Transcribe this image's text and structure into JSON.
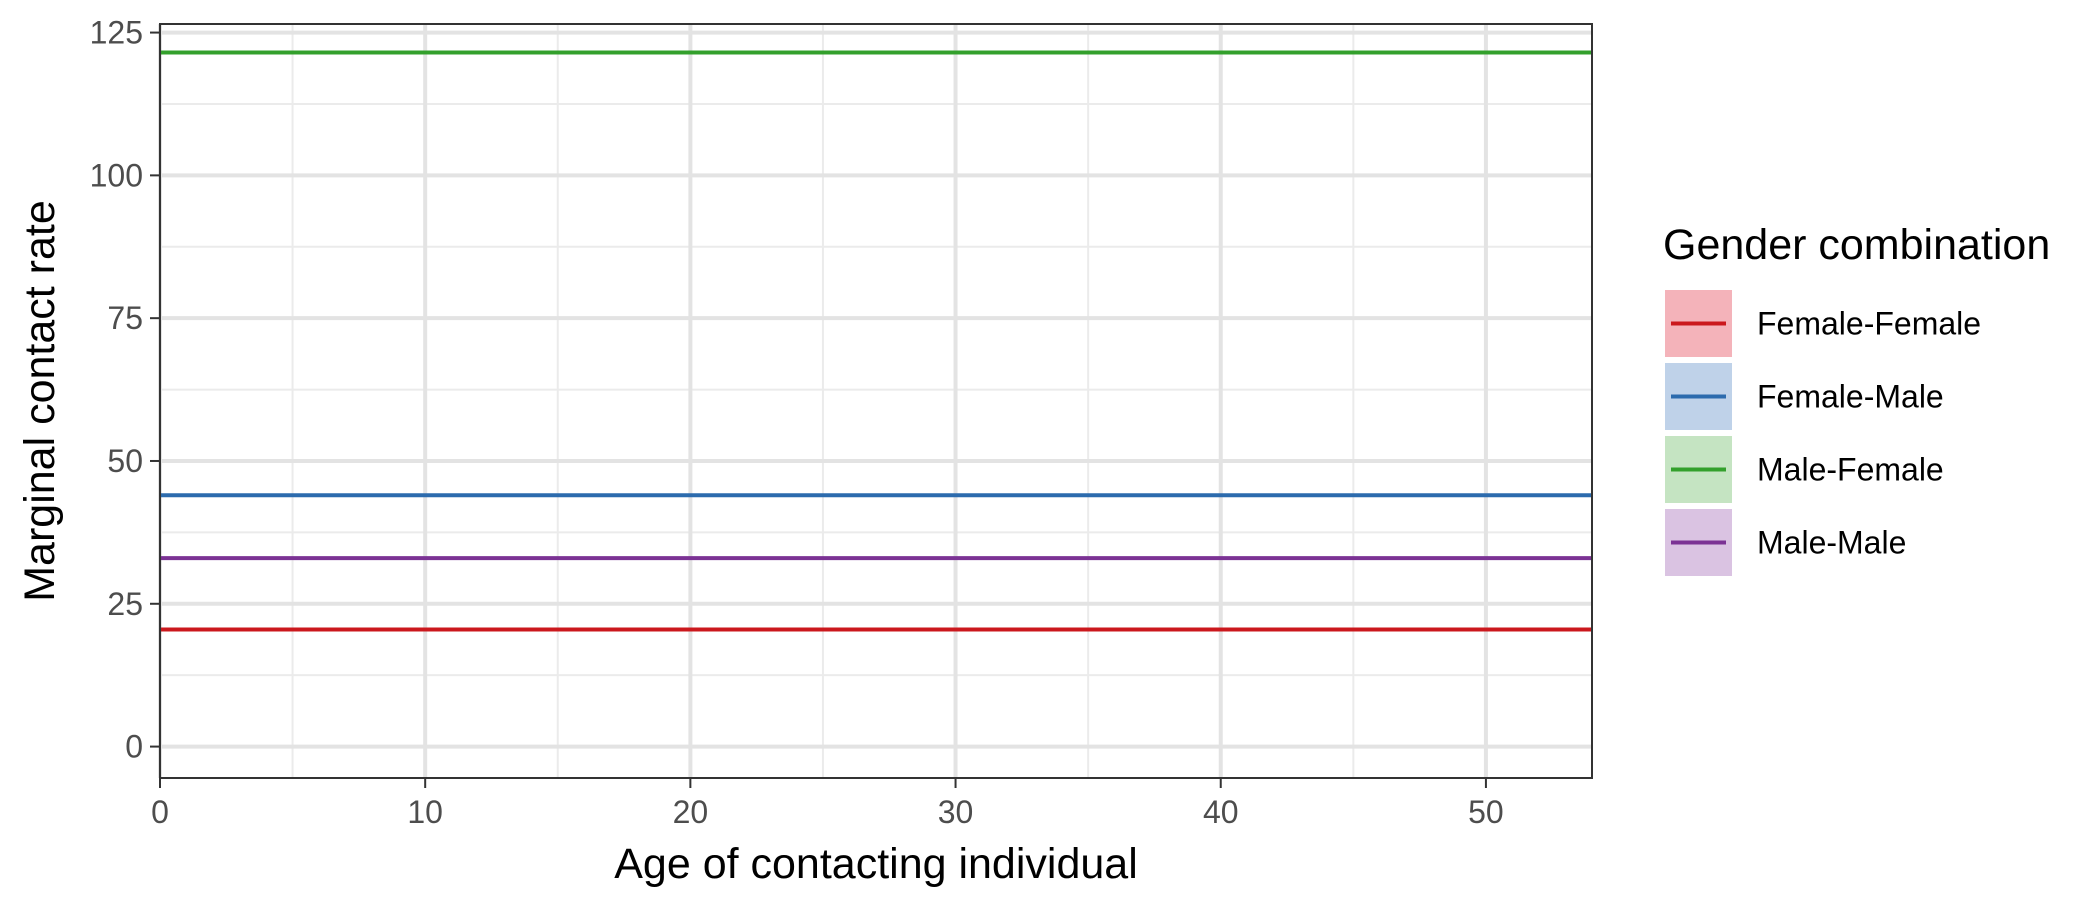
{
  "chart_data": {
    "type": "line",
    "xlabel": "Age of contacting individual",
    "ylabel": "Marginal contact rate",
    "xlim": [
      0,
      54
    ],
    "ylim": [
      -5.5,
      126.5
    ],
    "x_ticks": [
      0,
      10,
      20,
      30,
      40,
      50
    ],
    "y_ticks": [
      0,
      25,
      50,
      75,
      100,
      125
    ],
    "x_minor_ticks": [
      5,
      15,
      25,
      35,
      45
    ],
    "y_minor_ticks": [
      12.5,
      37.5,
      62.5,
      87.5,
      112.5
    ],
    "grid": true,
    "legend_title": "Gender combination",
    "legend_position": "right",
    "series": [
      {
        "name": "Female-Female",
        "color": "#CB181D",
        "fill": "#F4B3BA",
        "x": [
          0,
          54
        ],
        "y": [
          20.5,
          20.5
        ]
      },
      {
        "name": "Female-Male",
        "color": "#2C6BAD",
        "fill": "#BFD2E9",
        "x": [
          0,
          54
        ],
        "y": [
          44,
          44
        ]
      },
      {
        "name": "Male-Female",
        "color": "#33A02C",
        "fill": "#C5E4C2",
        "x": [
          0,
          54
        ],
        "y": [
          121.5,
          121.5
        ]
      },
      {
        "name": "Male-Male",
        "color": "#7B3294",
        "fill": "#DAC3E2",
        "x": [
          0,
          54
        ],
        "y": [
          33,
          33
        ]
      }
    ]
  }
}
